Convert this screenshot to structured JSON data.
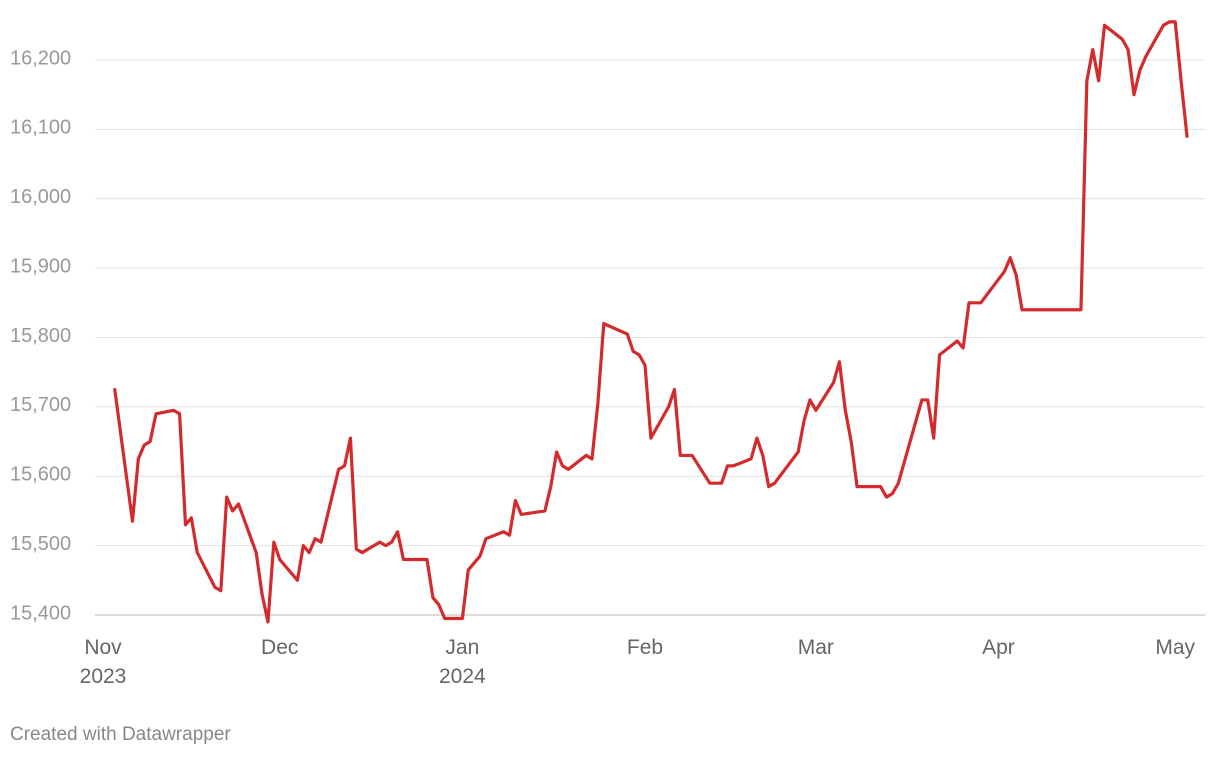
{
  "chart_data": {
    "type": "line",
    "credit": "Created with Datawrapper",
    "x": [
      2,
      5,
      6,
      7,
      8,
      9,
      12,
      13,
      14,
      15,
      16,
      19,
      20,
      21,
      22,
      23,
      26,
      27,
      28,
      29,
      30,
      33,
      34,
      35,
      36,
      37,
      40,
      41,
      42,
      43,
      44,
      47,
      48,
      49,
      50,
      51,
      55,
      56,
      57,
      58,
      61,
      62,
      64,
      65,
      68,
      69,
      70,
      71,
      75,
      76,
      77,
      78,
      79,
      82,
      83,
      84,
      85,
      89,
      90,
      91,
      92,
      93,
      96,
      97,
      98,
      100,
      103,
      105,
      106,
      107,
      110,
      111,
      112,
      113,
      114,
      118,
      119,
      120,
      121,
      124,
      125,
      126,
      127,
      128,
      132,
      133,
      134,
      135,
      138,
      139,
      140,
      141,
      142,
      145,
      146,
      147,
      149,
      153,
      154,
      155,
      156,
      166,
      167,
      168,
      169,
      170,
      173,
      174,
      175,
      176,
      177,
      180,
      181,
      182,
      183,
      184
    ],
    "series": [
      {
        "color": "#d32a2c",
        "values": [
          15725,
          15535,
          15625,
          15645,
          15650,
          15690,
          15695,
          15690,
          15530,
          15540,
          15490,
          15440,
          15435,
          15570,
          15550,
          15560,
          15490,
          15430,
          15390,
          15505,
          15480,
          15450,
          15500,
          15490,
          15510,
          15505,
          15610,
          15615,
          15655,
          15495,
          15490,
          15505,
          15500,
          15505,
          15520,
          15480,
          15480,
          15425,
          15415,
          15395,
          15395,
          15465,
          15485,
          15510,
          15520,
          15515,
          15565,
          15545,
          15550,
          15585,
          15635,
          15615,
          15610,
          15630,
          15625,
          15705,
          15820,
          15805,
          15780,
          15775,
          15760,
          15655,
          15700,
          15725,
          15630,
          15630,
          15590,
          15590,
          15615,
          15615,
          15625,
          15655,
          15630,
          15585,
          15590,
          15635,
          15680,
          15710,
          15695,
          15735,
          15765,
          15695,
          15650,
          15585,
          15585,
          15570,
          15575,
          15590,
          15680,
          15710,
          15710,
          15655,
          15775,
          15795,
          15785,
          15850,
          15850,
          15895,
          15915,
          15890,
          15840,
          15840,
          16170,
          16215,
          16170,
          16250,
          16230,
          16215,
          16150,
          16185,
          16205,
          16250,
          16255,
          16255,
          16170,
          16090
        ]
      }
    ],
    "xlim": [
      0,
      184
    ],
    "xticks": [
      {
        "value": 0,
        "label": "Nov\n2023"
      },
      {
        "value": 30,
        "label": "Dec"
      },
      {
        "value": 61,
        "label": "Jan\n2024"
      },
      {
        "value": 92,
        "label": "Feb"
      },
      {
        "value": 121,
        "label": "Mar"
      },
      {
        "value": 152,
        "label": "Apr"
      },
      {
        "value": 182,
        "label": "May"
      }
    ],
    "ylim": [
      15400,
      16200
    ],
    "yticks": [
      {
        "value": 15400,
        "label": "15,400"
      },
      {
        "value": 15500,
        "label": "15,500"
      },
      {
        "value": 15600,
        "label": "15,600"
      },
      {
        "value": 15700,
        "label": "15,700"
      },
      {
        "value": 15800,
        "label": "15,800"
      },
      {
        "value": 15900,
        "label": "15,900"
      },
      {
        "value": 16000,
        "label": "16,000"
      },
      {
        "value": 16100,
        "label": "16,100"
      },
      {
        "value": 16200,
        "label": "16,200"
      }
    ],
    "grid": true
  }
}
